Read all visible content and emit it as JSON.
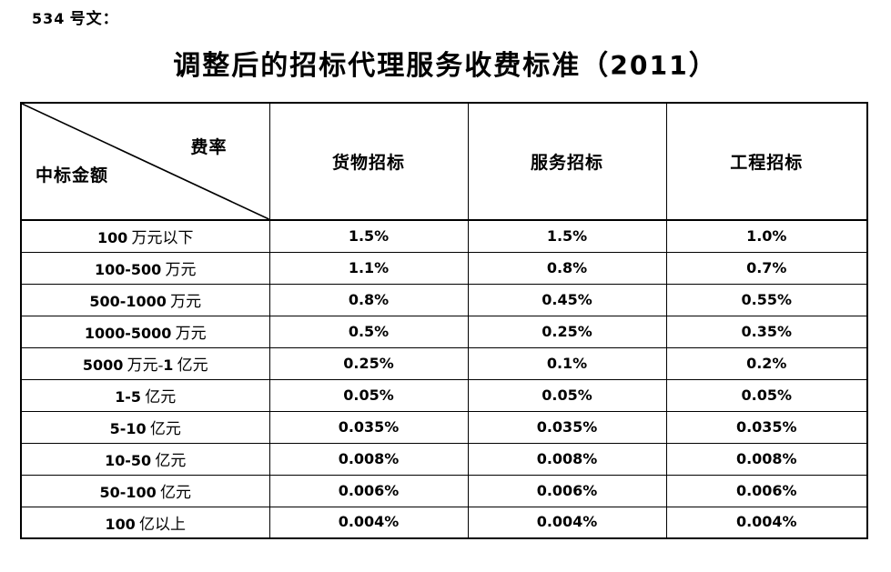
{
  "doc": {
    "ref_label": "534 号文：",
    "title": "调整后的招标代理服务收费标准（2011）"
  },
  "table": {
    "corner": {
      "top_right": "费率",
      "bottom_left": "中标金额"
    },
    "columns": [
      "货物招标",
      "服务招标",
      "工程招标"
    ],
    "rows": [
      {
        "label": "100 万元以下",
        "values": [
          "1.5%",
          "1.5%",
          "1.0%"
        ]
      },
      {
        "label": "100-500 万元",
        "values": [
          "1.1%",
          "0.8%",
          "0.7%"
        ]
      },
      {
        "label": "500-1000 万元",
        "values": [
          "0.8%",
          "0.45%",
          "0.55%"
        ]
      },
      {
        "label": "1000-5000 万元",
        "values": [
          "0.5%",
          "0.25%",
          "0.35%"
        ]
      },
      {
        "label": "5000 万元-1 亿元",
        "values": [
          "0.25%",
          "0.1%",
          "0.2%"
        ]
      },
      {
        "label": "1-5 亿元",
        "values": [
          "0.05%",
          "0.05%",
          "0.05%"
        ]
      },
      {
        "label": "5-10 亿元",
        "values": [
          "0.035%",
          "0.035%",
          "0.035%"
        ]
      },
      {
        "label": "10-50 亿元",
        "values": [
          "0.008%",
          "0.008%",
          "0.008%"
        ]
      },
      {
        "label": "50-100 亿元",
        "values": [
          "0.006%",
          "0.006%",
          "0.006%"
        ]
      },
      {
        "label": "100 亿以上",
        "values": [
          "0.004%",
          "0.004%",
          "0.004%"
        ]
      }
    ]
  },
  "colors": {
    "text": "#000000",
    "border": "#000000",
    "background": "#ffffff"
  }
}
